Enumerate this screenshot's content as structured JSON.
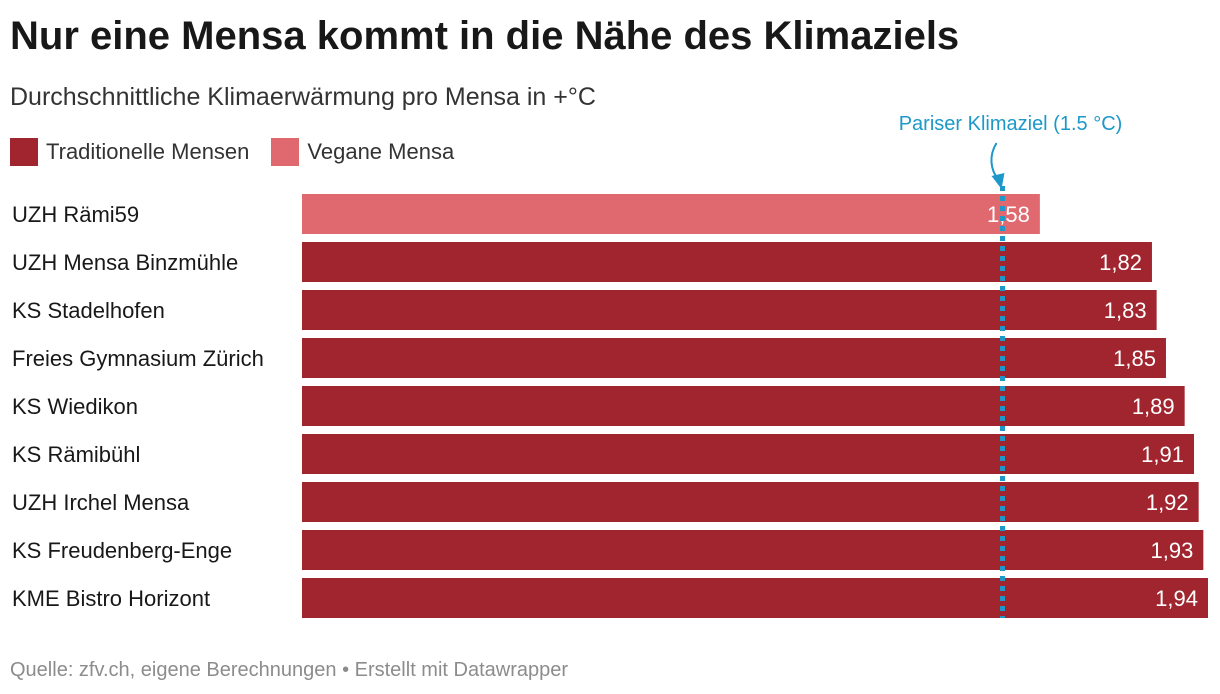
{
  "header": {
    "title": "Nur eine Mensa kommt in die Nähe des Klimaziels",
    "subtitle": "Durchschnittliche Klimaerwärmung pro Mensa in +°C"
  },
  "legend": [
    {
      "label": "Traditionelle Mensen",
      "color": "#a0252f"
    },
    {
      "label": "Vegane Mensa",
      "color": "#e06970"
    }
  ],
  "chart_data": {
    "type": "bar",
    "orientation": "horizontal",
    "categories": [
      "UZH Rämi59",
      "UZH Mensa Binzmühle",
      "KS Stadelhofen",
      "Freies Gymnasium Zürich",
      "KS Wiedikon",
      "KS Rämibühl",
      "UZH Irchel Mensa",
      "KS Freudenberg-Enge",
      "KME Bistro Horizont"
    ],
    "values": [
      1.58,
      1.82,
      1.83,
      1.85,
      1.89,
      1.91,
      1.92,
      1.93,
      1.94
    ],
    "value_labels": [
      "1,58",
      "1,82",
      "1,83",
      "1,85",
      "1,89",
      "1,91",
      "1,92",
      "1,93",
      "1,94"
    ],
    "groups": [
      "Vegane Mensa",
      "Traditionelle Mensen",
      "Traditionelle Mensen",
      "Traditionelle Mensen",
      "Traditionelle Mensen",
      "Traditionelle Mensen",
      "Traditionelle Mensen",
      "Traditionelle Mensen",
      "Traditionelle Mensen"
    ],
    "xlim": [
      0,
      1.94
    ],
    "grid": false,
    "legend_position": "top-left",
    "reference_line": {
      "value": 1.5,
      "label": "Pariser Klimaziel (1.5 °C)",
      "color": "#1d98c9",
      "style": "dotted"
    }
  },
  "footer": {
    "source": "Quelle: zfv.ch, eigene Berechnungen • Erstellt mit Datawrapper"
  }
}
